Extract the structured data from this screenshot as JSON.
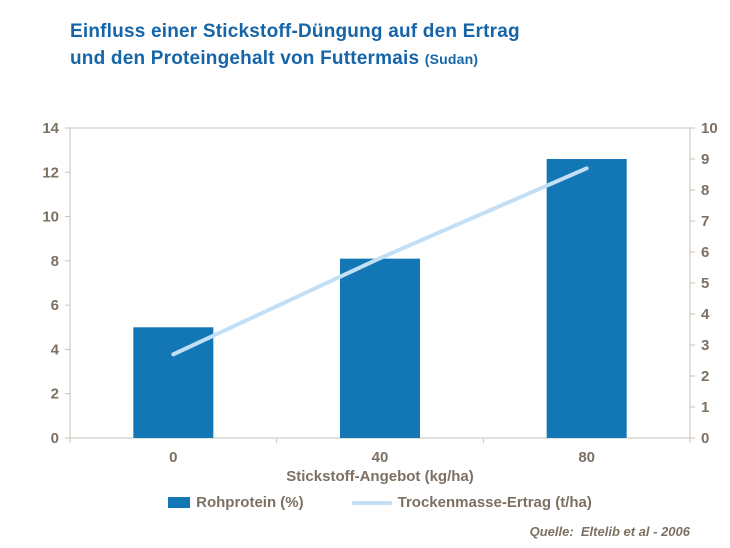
{
  "title": {
    "line1": "Einfluss einer Stickstoff-Düngung auf den Ertrag",
    "line2": "und den Proteingehalt von Futtermais",
    "suffix": "(Sudan)"
  },
  "source": "Quelle:  Eltelib et al - 2006",
  "chart_data": {
    "type": "bar",
    "subtype": "bar+line combo, dual y-axes",
    "categories": [
      "0",
      "40",
      "80"
    ],
    "xlabel": "Stickstoff-Angebot (kg/ha)",
    "series": [
      {
        "name": "Rohprotein (%)",
        "type": "bar",
        "axis": "left",
        "values": [
          5.0,
          8.1,
          12.6
        ],
        "color": "#1377B6"
      },
      {
        "name": "Trockenmasse-Ertrag (t/ha)",
        "type": "line",
        "axis": "right",
        "values": [
          2.7,
          5.8,
          8.7
        ],
        "color": "#C2DFF5"
      }
    ],
    "left_axis": {
      "min": 0,
      "max": 14,
      "step": 2
    },
    "right_axis": {
      "min": 0,
      "max": 10,
      "step": 1
    },
    "grid": false,
    "legend_position": "bottom"
  },
  "colors": {
    "title": "#1565A8",
    "axis_text": "#7C7062",
    "plot_border": "#C9C3B9"
  }
}
